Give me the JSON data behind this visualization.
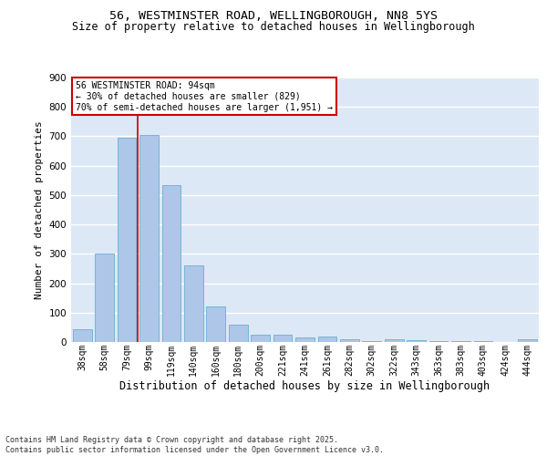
{
  "title_line1": "56, WESTMINSTER ROAD, WELLINGBOROUGH, NN8 5YS",
  "title_line2": "Size of property relative to detached houses in Wellingborough",
  "xlabel": "Distribution of detached houses by size in Wellingborough",
  "ylabel": "Number of detached properties",
  "categories": [
    "38sqm",
    "58sqm",
    "79sqm",
    "99sqm",
    "119sqm",
    "140sqm",
    "160sqm",
    "180sqm",
    "200sqm",
    "221sqm",
    "241sqm",
    "261sqm",
    "282sqm",
    "302sqm",
    "322sqm",
    "343sqm",
    "363sqm",
    "383sqm",
    "403sqm",
    "424sqm",
    "444sqm"
  ],
  "values": [
    45,
    300,
    695,
    705,
    535,
    260,
    120,
    58,
    25,
    25,
    15,
    18,
    8,
    3,
    8,
    7,
    3,
    3,
    2,
    1,
    8
  ],
  "bar_color": "#aec6e8",
  "bar_edge_color": "#6aafd4",
  "background_color": "#dce8f5",
  "grid_color": "#ffffff",
  "vline_x_index": 2.5,
  "vline_color": "#cc0000",
  "annotation_text": "56 WESTMINSTER ROAD: 94sqm\n← 30% of detached houses are smaller (829)\n70% of semi-detached houses are larger (1,951) →",
  "annotation_box_color": "#ffffff",
  "annotation_box_edge_color": "#cc0000",
  "footer_text": "Contains HM Land Registry data © Crown copyright and database right 2025.\nContains public sector information licensed under the Open Government Licence v3.0.",
  "ylim": [
    0,
    900
  ],
  "yticks": [
    0,
    100,
    200,
    300,
    400,
    500,
    600,
    700,
    800,
    900
  ],
  "title_fontsize": 9.5,
  "subtitle_fontsize": 8.5,
  "ylabel_fontsize": 8,
  "xlabel_fontsize": 8.5,
  "tick_fontsize": 7,
  "annotation_fontsize": 7,
  "footer_fontsize": 6
}
